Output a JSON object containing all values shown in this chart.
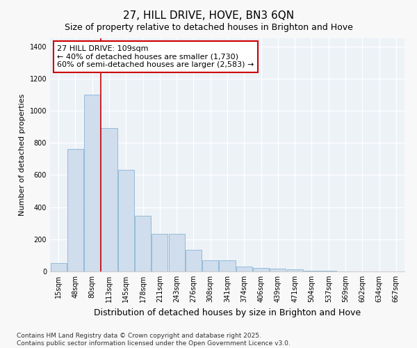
{
  "title": "27, HILL DRIVE, HOVE, BN3 6QN",
  "subtitle": "Size of property relative to detached houses in Brighton and Hove",
  "xlabel": "Distribution of detached houses by size in Brighton and Hove",
  "ylabel": "Number of detached properties",
  "categories": [
    "15sqm",
    "48sqm",
    "80sqm",
    "113sqm",
    "145sqm",
    "178sqm",
    "211sqm",
    "243sqm",
    "276sqm",
    "308sqm",
    "341sqm",
    "374sqm",
    "406sqm",
    "439sqm",
    "471sqm",
    "504sqm",
    "537sqm",
    "569sqm",
    "602sqm",
    "634sqm",
    "667sqm"
  ],
  "values": [
    52,
    760,
    1100,
    890,
    630,
    345,
    235,
    235,
    135,
    70,
    70,
    30,
    20,
    18,
    12,
    5,
    3,
    2,
    1,
    1,
    1
  ],
  "bar_color": "#cfdded",
  "bar_edge_color": "#8ab4d4",
  "vline_x": 2.5,
  "vline_color": "#cc0000",
  "annotation_text": "27 HILL DRIVE: 109sqm\n← 40% of detached houses are smaller (1,730)\n60% of semi-detached houses are larger (2,583) →",
  "annotation_box_color": "#ffffff",
  "annotation_box_edge_color": "#cc0000",
  "footer_text": "Contains HM Land Registry data © Crown copyright and database right 2025.\nContains public sector information licensed under the Open Government Licence v3.0.",
  "ylim": [
    0,
    1450
  ],
  "fig_bg_color": "#f8f8f8",
  "plot_bg_color": "#edf2f7",
  "title_fontsize": 11,
  "subtitle_fontsize": 9,
  "xlabel_fontsize": 9,
  "ylabel_fontsize": 8,
  "tick_fontsize": 7,
  "footer_fontsize": 6.5,
  "annotation_fontsize": 8
}
